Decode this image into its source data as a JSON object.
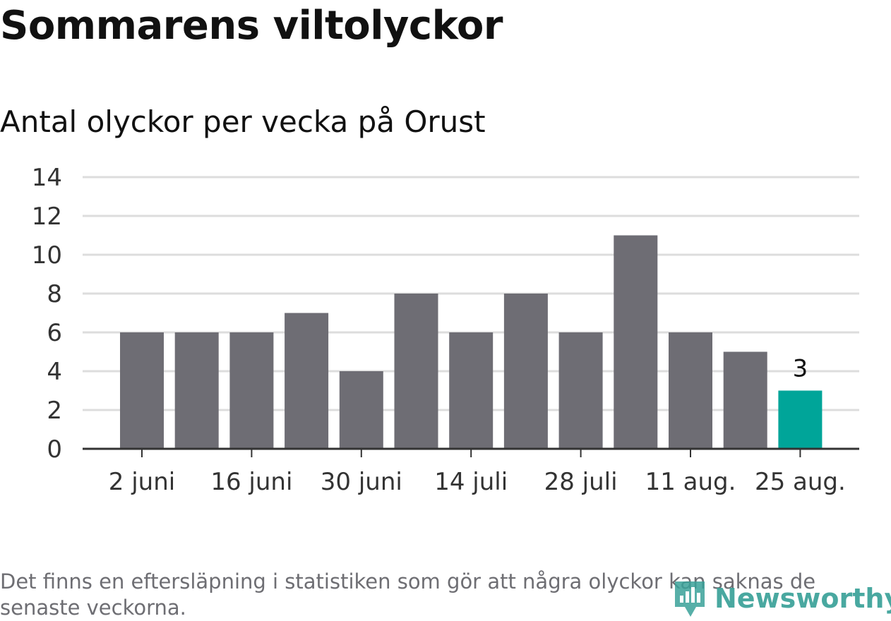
{
  "title": "Sommarens viltolyckor",
  "subtitle": "Antal olyckor per vecka på Orust",
  "footnote": "Det finns en eftersläpning i statistiken som gör att några olyckor kan saknas de senaste veckorna.",
  "brand": "Newsworthy",
  "colors": {
    "bar": "#6e6d74",
    "highlight": "#00a599",
    "grid": "#dddddd",
    "axis": "#333333",
    "brand": "#3aa199"
  },
  "chart_data": {
    "type": "bar",
    "title": "Sommarens viltolyckor",
    "subtitle": "Antal olyckor per vecka på Orust",
    "xlabel": "",
    "ylabel": "",
    "ylim": [
      0,
      14
    ],
    "yticks": [
      "0",
      "2",
      "4",
      "6",
      "8",
      "10",
      "12",
      "14"
    ],
    "grid": true,
    "values": [
      6,
      6,
      6,
      7,
      4,
      8,
      6,
      8,
      6,
      11,
      6,
      5,
      3
    ],
    "highlight_index": 12,
    "highlight_label": "3",
    "x_tick_labels": [
      {
        "index": 0,
        "label": "2 juni"
      },
      {
        "index": 2,
        "label": "16 juni"
      },
      {
        "index": 4,
        "label": "30 juni"
      },
      {
        "index": 6,
        "label": "14 juli"
      },
      {
        "index": 8,
        "label": "28 juli"
      },
      {
        "index": 10,
        "label": "11 aug."
      },
      {
        "index": 12,
        "label": "25 aug."
      }
    ]
  }
}
